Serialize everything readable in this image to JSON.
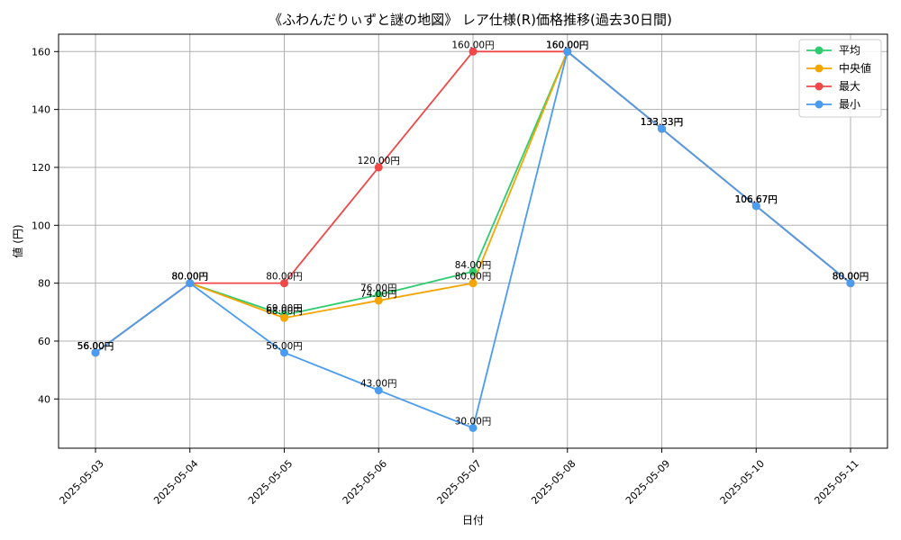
{
  "chart_data": {
    "type": "line",
    "title": "《ふわんだりぃずと謎の地図》 レア仕様(R)価格推移(過去30日間)",
    "xlabel": "日付",
    "ylabel": "値 (円)",
    "ylim": [
      23,
      166
    ],
    "y_ticks": [
      40,
      60,
      80,
      100,
      120,
      140,
      160
    ],
    "grid": true,
    "legend_position": "top-right",
    "categories": [
      "2025-05-03",
      "2025-05-04",
      "2025-05-05",
      "2025-05-06",
      "2025-05-07",
      "2025-05-08",
      "2025-05-09",
      "2025-05-10",
      "2025-05-11"
    ],
    "series": [
      {
        "name": "平均",
        "color": "#2ecc71",
        "values": [
          56,
          80,
          69,
          76,
          84,
          160,
          133.33,
          106.67,
          80
        ],
        "labels": [
          "56.00円",
          "80.00円",
          "69.00円",
          "76.00円",
          "84.00円",
          "160.00円",
          "133.33円",
          "106.67円",
          "80.00円"
        ]
      },
      {
        "name": "中央値",
        "color": "#f5a500",
        "values": [
          56,
          80,
          68,
          74,
          80,
          160,
          133.33,
          106.67,
          80
        ],
        "labels": [
          "56.00円",
          "80.00円",
          "68.00円",
          "74.00円",
          "80.00円",
          "160.00円",
          "133.33円",
          "106.67円",
          "80.00円"
        ]
      },
      {
        "name": "最大",
        "color": "#f04848",
        "values": [
          56,
          80,
          80,
          120,
          160,
          160,
          133.33,
          106.67,
          80
        ],
        "labels": [
          "56.00円",
          "80.00円",
          "80.00円",
          "120.00円",
          "160.00円",
          "160.00円",
          "133.33円",
          "106.67円",
          "80.00円"
        ]
      },
      {
        "name": "最小",
        "color": "#4a9cf0",
        "values": [
          56,
          80,
          56,
          43,
          30,
          160,
          133.33,
          106.67,
          80
        ],
        "labels": [
          "56.00円",
          "80.00円",
          "56.00円",
          "43.00円",
          "30.00円",
          "160.00円",
          "133.33円",
          "106.67円",
          "80.00円"
        ]
      }
    ]
  }
}
